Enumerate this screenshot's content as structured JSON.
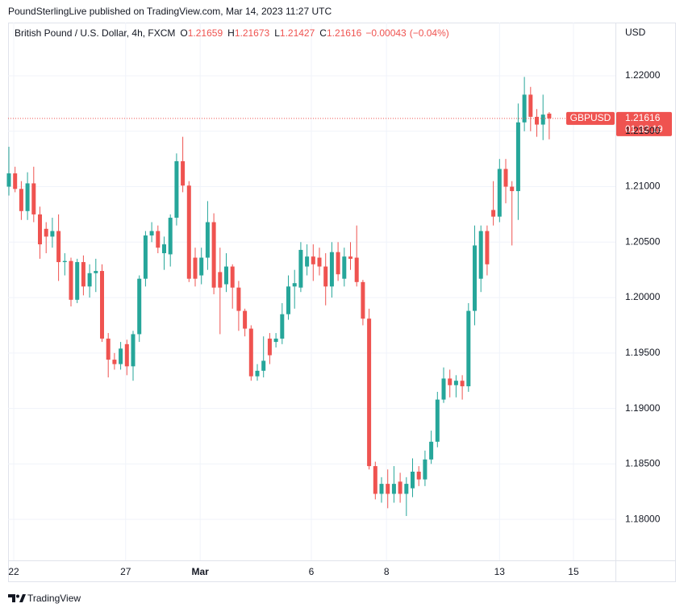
{
  "header": "PoundSterlingLive published on TradingView.com, Mar 14, 2023 11:27 UTC",
  "footer": "TradingView",
  "chart_data": {
    "type": "candlestick",
    "title": "British Pound / U.S. Dollar, 4h, FXCM",
    "legend": {
      "o": "O",
      "h": "H",
      "l": "L",
      "c": "C",
      "change": "−0.00043",
      "change_pct": "(−0.04%)"
    },
    "symbol_tag": "GBPUSD",
    "countdown": "01:32:19",
    "y_axis_label": "USD",
    "up_color": "#26a69a",
    "down_color": "#ef5350",
    "grid": true,
    "xlim": [
      -0.13,
      97.66
    ],
    "xticks": [
      {
        "value": 0.78,
        "label": "22"
      },
      {
        "value": 18.8,
        "label": "27"
      },
      {
        "value": 30.8,
        "label": "Mar"
      },
      {
        "value": 48.7,
        "label": "6"
      },
      {
        "value": 60.8,
        "label": "8"
      },
      {
        "value": 79.0,
        "label": "13"
      },
      {
        "value": 90.9,
        "label": "15"
      }
    ],
    "ylim": [
      1.1763,
      1.2248
    ],
    "yticks": [
      {
        "value": 1.18,
        "label": "1.18000"
      },
      {
        "value": 1.185,
        "label": "1.18500"
      },
      {
        "value": 1.19,
        "label": "1.19000"
      },
      {
        "value": 1.195,
        "label": "1.19500"
      },
      {
        "value": 1.2,
        "label": "1.20000"
      },
      {
        "value": 1.205,
        "label": "1.20500"
      },
      {
        "value": 1.21,
        "label": "1.21000"
      },
      {
        "value": 1.215,
        "label": "1.21500"
      },
      {
        "value": 1.22,
        "label": "1.22000"
      }
    ],
    "open": [
      1.21,
      1.2112,
      1.2098,
      1.2078,
      1.2103,
      1.2075,
      1.2062,
      1.2055,
      1.206,
      1.2032,
      1.2033,
      1.1998,
      1.2032,
      1.201,
      1.2022,
      1.2024,
      1.1963,
      1.1944,
      1.194,
      1.1958,
      1.1938,
      1.1967,
      1.2017,
      1.2056,
      1.206,
      1.204,
      1.2039,
      1.2072,
      1.2123,
      1.2101,
      1.2036,
      1.202,
      1.2036,
      1.2068,
      1.2023,
      1.2012,
      1.2028,
      1.2009,
      1.1988,
      1.1972,
      1.1929,
      1.1934,
      1.1963,
      1.196,
      1.1963,
      1.1985,
      1.201,
      1.2009,
      1.2028,
      1.2037,
      1.2036,
      1.2028,
      1.201,
      1.2041,
      1.2017,
      1.2037,
      1.2036,
      1.2014,
      1.1981,
      1.1848,
      1.1823,
      1.1832,
      1.1823,
      1.1834,
      1.1823,
      1.1828,
      1.1843,
      1.1836,
      1.1854,
      1.187,
      1.1908,
      1.1927,
      1.1921,
      1.1925,
      1.192,
      1.1988,
      1.2017,
      1.206,
      1.2079,
      1.2073,
      1.2116,
      1.21,
      1.2096,
      1.2158,
      1.2183,
      1.2163,
      1.2156,
      1.21659
    ],
    "high": [
      1.2136,
      1.2118,
      1.2105,
      1.2113,
      1.2118,
      1.2082,
      1.2068,
      1.2072,
      1.2075,
      1.204,
      1.2036,
      1.2035,
      1.2038,
      1.203,
      1.2035,
      1.203,
      1.1968,
      1.195,
      1.196,
      1.1962,
      1.197,
      1.202,
      1.206,
      1.2068,
      1.2065,
      1.2055,
      1.2075,
      1.213,
      1.2145,
      1.2105,
      1.2045,
      1.2045,
      1.2087,
      1.2076,
      1.2045,
      1.204,
      1.203,
      1.2015,
      1.199,
      1.1975,
      1.194,
      1.1965,
      1.1968,
      1.1968,
      1.1995,
      1.202,
      1.2025,
      1.205,
      1.2048,
      1.2048,
      1.2045,
      1.204,
      1.205,
      1.205,
      1.2045,
      1.205,
      1.2065,
      1.2016,
      1.199,
      1.1852,
      1.1838,
      1.1845,
      1.1848,
      1.1842,
      1.1838,
      1.1855,
      1.1848,
      1.1862,
      1.188,
      1.1915,
      1.1937,
      1.1935,
      1.193,
      1.193,
      1.1995,
      1.2065,
      1.2065,
      1.2065,
      1.2105,
      1.2125,
      1.2125,
      1.2105,
      1.2175,
      1.2199,
      1.219,
      1.217,
      1.2183,
      1.21673
    ],
    "low": [
      1.2092,
      1.2095,
      1.207,
      1.207,
      1.2068,
      1.2035,
      1.204,
      1.2045,
      1.2015,
      1.202,
      1.1992,
      1.1995,
      1.2002,
      1.2,
      1.2005,
      1.196,
      1.1928,
      1.1935,
      1.1935,
      1.193,
      1.1925,
      1.196,
      1.201,
      1.205,
      1.204,
      1.2025,
      1.2028,
      1.2065,
      1.2095,
      1.2014,
      1.201,
      1.2012,
      1.2025,
      1.2003,
      1.1967,
      1.2005,
      1.199,
      1.197,
      1.1965,
      1.1925,
      1.1925,
      1.1928,
      1.194,
      1.1955,
      1.1958,
      1.198,
      1.199,
      1.2005,
      1.202,
      1.2015,
      1.202,
      1.1993,
      1.2,
      1.2015,
      1.201,
      1.2025,
      1.201,
      1.1975,
      1.1845,
      1.1818,
      1.1815,
      1.181,
      1.1815,
      1.1815,
      1.1803,
      1.182,
      1.183,
      1.183,
      1.185,
      1.1865,
      1.1905,
      1.191,
      1.191,
      1.1908,
      1.1915,
      1.1975,
      1.2005,
      1.202,
      1.2065,
      1.2068,
      1.2085,
      1.2047,
      1.207,
      1.215,
      1.215,
      1.2145,
      1.2142,
      1.21427
    ],
    "close": [
      1.2112,
      1.2098,
      1.2078,
      1.2103,
      1.2075,
      1.2048,
      1.2055,
      1.206,
      1.2032,
      1.2033,
      1.1998,
      1.2032,
      1.201,
      1.2022,
      1.2024,
      1.1963,
      1.1944,
      1.194,
      1.1954,
      1.1938,
      1.1967,
      1.2017,
      1.2056,
      1.206,
      1.2045,
      1.2048,
      1.2072,
      1.2123,
      1.2101,
      1.2017,
      1.2017,
      1.2036,
      1.2068,
      1.2009,
      1.2009,
      1.2028,
      1.2009,
      1.1988,
      1.1972,
      1.1929,
      1.1934,
      1.1943,
      1.1948,
      1.1963,
      1.1985,
      1.201,
      1.2013,
      1.2043,
      1.2037,
      1.203,
      1.2028,
      1.201,
      1.2041,
      1.2021,
      1.2037,
      1.2035,
      1.2014,
      1.1981,
      1.1848,
      1.1823,
      1.1832,
      1.1823,
      1.1832,
      1.1823,
      1.1832,
      1.1843,
      1.1836,
      1.1854,
      1.187,
      1.1908,
      1.1927,
      1.1921,
      1.1925,
      1.192,
      1.1988,
      1.2047,
      1.206,
      1.203,
      1.2073,
      1.2116,
      1.21,
      1.2096,
      1.2158,
      1.2183,
      1.2163,
      1.2156,
      1.2165,
      1.21616
    ]
  }
}
